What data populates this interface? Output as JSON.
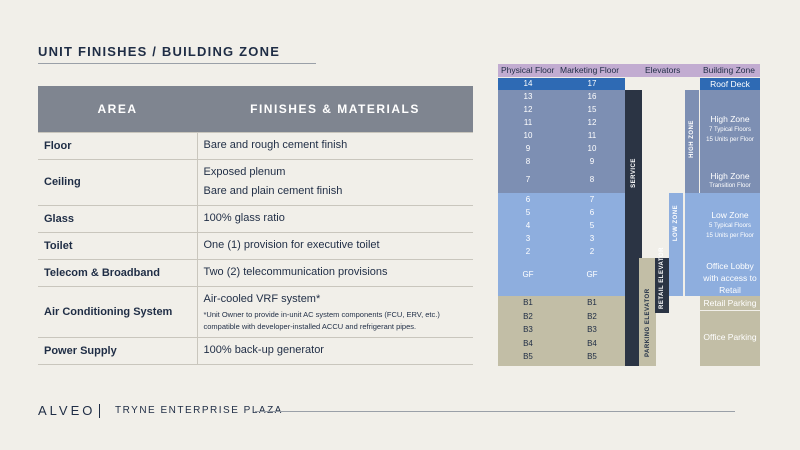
{
  "title": "UNIT FINISHES / BUILDING ZONE",
  "table": {
    "header_area": "AREA",
    "header_finishes": "FINISHES & MATERIALS",
    "rows": [
      {
        "area": "Floor",
        "lines": [
          "Bare and rough cement finish"
        ]
      },
      {
        "area": "Ceiling",
        "lines": [
          "Exposed plenum",
          "Bare and plain cement finish"
        ]
      },
      {
        "area": "Glass",
        "lines": [
          "100% glass ratio"
        ]
      },
      {
        "area": "Toilet",
        "lines": [
          "One (1) provision for executive toilet"
        ]
      },
      {
        "area": "Telecom & Broadband",
        "lines": [
          "Two (2) telecommunication provisions"
        ]
      },
      {
        "area": "Air Conditioning System",
        "lines": [
          "Air-cooled VRF system*"
        ],
        "note": "*Unit Owner to provide in-unit AC system components (FCU, ERV, etc.) compatible with developer-installed ACCU and refrigerant pipes."
      },
      {
        "area": "Power Supply",
        "lines": [
          "100% back-up generator"
        ]
      }
    ]
  },
  "zone": {
    "headers": {
      "physical": "Physical Floor",
      "marketing": "Marketing Floor",
      "elevators": "Elevators",
      "zone": "Building Zone"
    },
    "physical": [
      "14",
      "13",
      "12",
      "11",
      "10",
      "9",
      "8",
      "7",
      "6",
      "5",
      "4",
      "3",
      "2",
      "GF",
      "B1",
      "B2",
      "B3",
      "B4",
      "B5"
    ],
    "marketing": [
      "17",
      "16",
      "15",
      "12",
      "11",
      "10",
      "9",
      "8",
      "7",
      "6",
      "5",
      "3",
      "2",
      "GF",
      "B1",
      "B2",
      "B3",
      "B4",
      "B5"
    ],
    "elevators": {
      "service": "SERVICE",
      "high": "HIGH ZONE",
      "low": "LOW ZONE",
      "retail": "RETAIL ELEVATOR",
      "parking": "PARKING ELEVATOR"
    },
    "zones": {
      "roof": "Roof Deck",
      "high_title": "High Zone",
      "high_sub1": "7 Typical Floors",
      "high_sub2": "15 Units per Floor",
      "transition_title": "High Zone",
      "transition_sub": "Transition Floor",
      "low_title": "Low Zone",
      "low_sub1": "5 Typical Floors",
      "low_sub2": "15 Units per Floor",
      "lobby1": "Office Lobby",
      "lobby2": "with access to",
      "lobby3": "Retail",
      "retail_parking": "Retail Parking",
      "office_parking": "Office Parking"
    },
    "colors": {
      "roof": "#2e6ab4",
      "high": "#7d8fb3",
      "low": "#8eaede",
      "basement": "#c2bea6",
      "header": "#c2acd1",
      "service": "#2b3444"
    }
  },
  "footer": {
    "logo": "ALVEO",
    "project": "TRYNE ENTERPRISE PLAZA"
  }
}
